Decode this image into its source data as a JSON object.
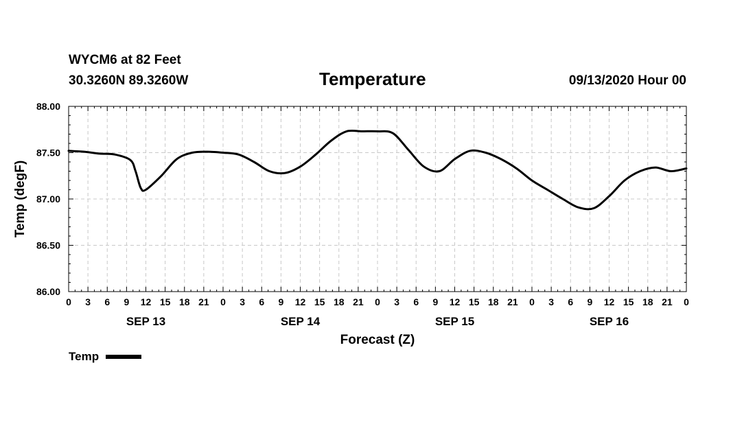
{
  "header": {
    "station": "WYCM6 at 82 Feet",
    "coords": "30.3260N 89.3260W",
    "datetime": "09/13/2020 Hour 00"
  },
  "chart_data": {
    "type": "line",
    "title": "Temperature",
    "xlabel": "Forecast (Z)",
    "ylabel": "Temp (degF)",
    "ylim": [
      86.0,
      88.0
    ],
    "yticks": [
      "86.00",
      "86.50",
      "87.00",
      "87.50",
      "88.00"
    ],
    "xticks": [
      "0",
      "3",
      "6",
      "9",
      "12",
      "15",
      "18",
      "21",
      "0",
      "3",
      "6",
      "9",
      "12",
      "15",
      "18",
      "21",
      "0",
      "3",
      "6",
      "9",
      "12",
      "15",
      "18",
      "21",
      "0",
      "3",
      "6",
      "9",
      "12",
      "15",
      "18",
      "21",
      "0"
    ],
    "day_labels": [
      "SEP 13",
      "SEP 14",
      "SEP 15",
      "SEP 16"
    ],
    "grid": true,
    "series": [
      {
        "name": "Temp",
        "x": [
          0,
          3,
          6,
          9,
          12,
          13,
          14,
          15,
          18,
          21,
          24,
          27,
          30,
          33,
          36,
          39,
          42,
          45,
          48,
          51,
          54,
          57,
          60,
          63,
          66,
          69,
          72,
          75,
          78,
          81,
          84,
          87,
          90,
          93,
          96,
          99,
          102,
          105,
          108,
          111,
          114,
          117,
          120
        ],
        "values": [
          87.52,
          87.51,
          87.49,
          87.48,
          87.42,
          87.3,
          87.12,
          87.1,
          87.25,
          87.43,
          87.5,
          87.51,
          87.5,
          87.48,
          87.4,
          87.3,
          87.28,
          87.35,
          87.48,
          87.63,
          87.73,
          87.73,
          87.73,
          87.71,
          87.53,
          87.35,
          87.3,
          87.43,
          87.52,
          87.5,
          87.43,
          87.33,
          87.2,
          87.1,
          87.0,
          86.91,
          86.9,
          87.03,
          87.2,
          87.3,
          87.34,
          87.3,
          87.33
        ]
      }
    ],
    "legend": "bottom-left"
  }
}
